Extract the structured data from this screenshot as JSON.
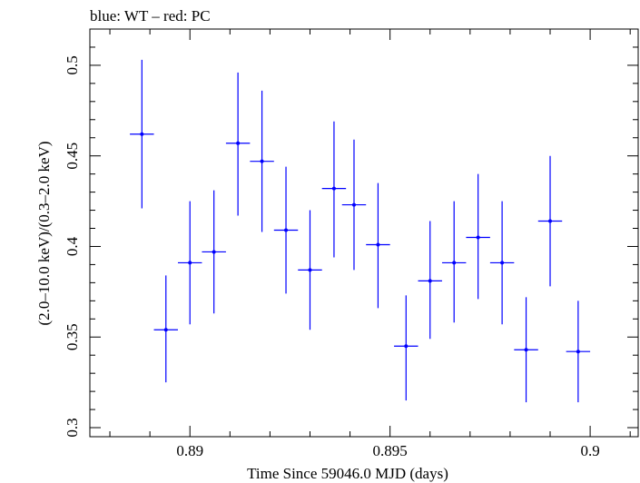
{
  "chart_data": {
    "type": "scatter",
    "title": "blue: WT – red: PC",
    "xlabel": "Time Since 59046.0 MJD (days)",
    "ylabel": "(2.0–10.0 keV)/(0.3–2.0 keV)",
    "xlim": [
      0.8875,
      0.9012
    ],
    "ylim": [
      0.295,
      0.52
    ],
    "x_ticks": [
      0.89,
      0.895,
      0.9
    ],
    "x_tick_labels": [
      "0.89",
      "0.895",
      "0.9"
    ],
    "y_ticks": [
      0.3,
      0.35,
      0.4,
      0.45,
      0.5
    ],
    "y_tick_labels": [
      "0.3",
      "0.35",
      "0.4",
      "0.45",
      "0.5"
    ],
    "grid": false,
    "series": [
      {
        "name": "WT",
        "color": "#0000ff",
        "points": [
          {
            "x": 0.8888,
            "y": 0.462,
            "xerr": 0.0003,
            "ylo": 0.421,
            "yhi": 0.503
          },
          {
            "x": 0.8894,
            "y": 0.354,
            "xerr": 0.0003,
            "ylo": 0.325,
            "yhi": 0.384
          },
          {
            "x": 0.89,
            "y": 0.391,
            "xerr": 0.0003,
            "ylo": 0.357,
            "yhi": 0.425
          },
          {
            "x": 0.8906,
            "y": 0.397,
            "xerr": 0.0003,
            "ylo": 0.363,
            "yhi": 0.431
          },
          {
            "x": 0.8912,
            "y": 0.457,
            "xerr": 0.0003,
            "ylo": 0.417,
            "yhi": 0.496
          },
          {
            "x": 0.8918,
            "y": 0.447,
            "xerr": 0.0003,
            "ylo": 0.408,
            "yhi": 0.486
          },
          {
            "x": 0.8924,
            "y": 0.409,
            "xerr": 0.0003,
            "ylo": 0.374,
            "yhi": 0.444
          },
          {
            "x": 0.893,
            "y": 0.387,
            "xerr": 0.0003,
            "ylo": 0.354,
            "yhi": 0.42
          },
          {
            "x": 0.8936,
            "y": 0.432,
            "xerr": 0.0003,
            "ylo": 0.394,
            "yhi": 0.469
          },
          {
            "x": 0.8941,
            "y": 0.423,
            "xerr": 0.0003,
            "ylo": 0.387,
            "yhi": 0.459
          },
          {
            "x": 0.8947,
            "y": 0.401,
            "xerr": 0.0003,
            "ylo": 0.366,
            "yhi": 0.435
          },
          {
            "x": 0.8954,
            "y": 0.345,
            "xerr": 0.0003,
            "ylo": 0.315,
            "yhi": 0.373
          },
          {
            "x": 0.896,
            "y": 0.381,
            "xerr": 0.0003,
            "ylo": 0.349,
            "yhi": 0.414
          },
          {
            "x": 0.8966,
            "y": 0.391,
            "xerr": 0.0003,
            "ylo": 0.358,
            "yhi": 0.425
          },
          {
            "x": 0.8972,
            "y": 0.405,
            "xerr": 0.0003,
            "ylo": 0.371,
            "yhi": 0.44
          },
          {
            "x": 0.8978,
            "y": 0.391,
            "xerr": 0.0003,
            "ylo": 0.357,
            "yhi": 0.425
          },
          {
            "x": 0.8984,
            "y": 0.343,
            "xerr": 0.0003,
            "ylo": 0.314,
            "yhi": 0.372
          },
          {
            "x": 0.899,
            "y": 0.414,
            "xerr": 0.0003,
            "ylo": 0.378,
            "yhi": 0.45
          },
          {
            "x": 0.8997,
            "y": 0.342,
            "xerr": 0.0003,
            "ylo": 0.314,
            "yhi": 0.37
          }
        ]
      }
    ]
  }
}
